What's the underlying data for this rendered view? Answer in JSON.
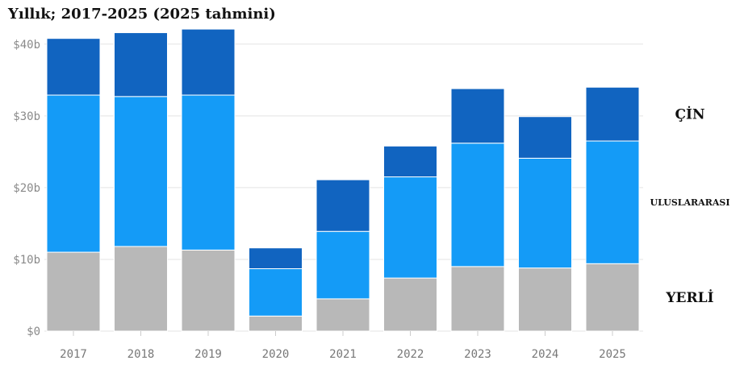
{
  "chart_data": {
    "type": "bar",
    "stacked": true,
    "title": "Yıllık; 2017-2025 (2025 tahmini)",
    "categories": [
      "2017",
      "2018",
      "2019",
      "2020",
      "2021",
      "2022",
      "2023",
      "2024",
      "2025"
    ],
    "series": [
      {
        "name": "YERLİ",
        "color": "#b8b8b8",
        "values": [
          11.0,
          11.8,
          11.3,
          2.1,
          4.5,
          7.4,
          9.0,
          8.8,
          9.4
        ]
      },
      {
        "name": "ULUSLARARASI",
        "color": "#149bf7",
        "values": [
          21.9,
          20.9,
          21.6,
          6.6,
          9.4,
          14.1,
          17.2,
          15.3,
          17.1
        ]
      },
      {
        "name": "ÇİN",
        "color": "#1164c0",
        "values": [
          7.9,
          8.9,
          9.2,
          2.9,
          7.2,
          4.3,
          7.6,
          5.8,
          7.5
        ]
      }
    ],
    "ylim": [
      0,
      42
    ],
    "yticks": [
      {
        "value": 0,
        "label": "$0"
      },
      {
        "value": 10,
        "label": "$10b"
      },
      {
        "value": 20,
        "label": "$20b"
      },
      {
        "value": 30,
        "label": "$30b"
      },
      {
        "value": 40,
        "label": "$40b"
      }
    ],
    "grid": true,
    "legend": "right, labels beside the 2025 bar"
  }
}
